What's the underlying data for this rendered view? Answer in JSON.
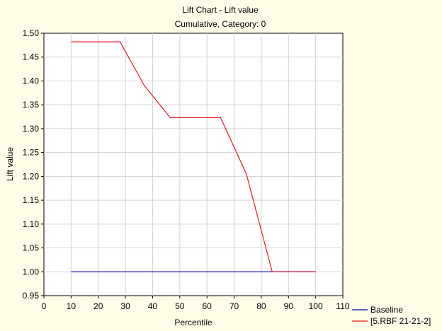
{
  "chart_data": {
    "type": "line",
    "title": "Lift Chart - Lift value",
    "subtitle": "Cumulative, Category: 0",
    "xlabel": "Percentile",
    "ylabel": "Lift value",
    "xlim": [
      0,
      110
    ],
    "ylim": [
      0.95,
      1.5
    ],
    "x_ticks": [
      0,
      10,
      20,
      30,
      40,
      50,
      60,
      70,
      80,
      90,
      100,
      110
    ],
    "y_ticks": [
      0.95,
      1.0,
      1.05,
      1.1,
      1.15,
      1.2,
      1.25,
      1.3,
      1.35,
      1.4,
      1.45,
      1.5
    ],
    "grid": true,
    "legend_position": "bottom-right",
    "series": [
      {
        "name": "Baseline",
        "color": "#0000aa",
        "x": [
          10,
          100
        ],
        "y": [
          1.0,
          1.0
        ]
      },
      {
        "name": "[5.RBF 21-21-2]",
        "color": "#e8141c",
        "x": [
          10,
          28,
          37,
          46.5,
          65,
          74.5,
          84,
          100
        ],
        "y": [
          1.482,
          1.482,
          1.39,
          1.323,
          1.323,
          1.205,
          1.0,
          1.0
        ]
      }
    ]
  }
}
